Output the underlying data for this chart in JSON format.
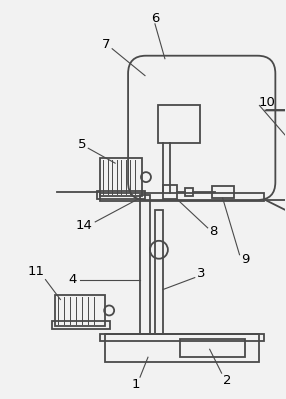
{
  "bg_color": "#f2f2f2",
  "line_color": "#4a4a4a",
  "line_width": 1.3,
  "fig_w": 2.86,
  "fig_h": 3.99,
  "dpi": 100
}
